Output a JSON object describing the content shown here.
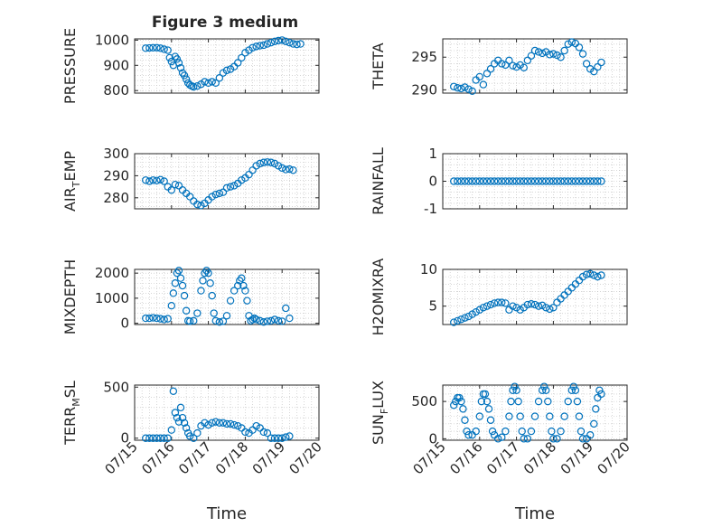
{
  "figure": {
    "title": "Figure 3 medium"
  },
  "chart_data": [
    {
      "type": "scatter",
      "title": "Figure 3 medium",
      "ylabel": "PRESSURE",
      "xlabel": "",
      "xlim": [
        "07/15",
        "07/20"
      ],
      "ylim": [
        790,
        1005
      ],
      "yticks": [
        800,
        900,
        1000
      ],
      "xticks": [
        "07/15",
        "07/16",
        "07/17",
        "07/18",
        "07/19",
        "07/20"
      ],
      "grid": "minor-dotted",
      "marker_color": "#0072BD",
      "x_days": [
        0.3,
        0.4,
        0.5,
        0.6,
        0.7,
        0.8,
        0.9,
        0.95,
        1.0,
        1.05,
        1.1,
        1.15,
        1.2,
        1.25,
        1.3,
        1.35,
        1.4,
        1.45,
        1.5,
        1.55,
        1.6,
        1.7,
        1.8,
        1.9,
        2.0,
        2.1,
        2.2,
        2.3,
        2.4,
        2.5,
        2.6,
        2.7,
        2.8,
        2.9,
        3.0,
        3.1,
        3.2,
        3.3,
        3.4,
        3.5,
        3.6,
        3.7,
        3.8,
        3.9,
        4.0,
        4.1,
        4.2,
        4.3,
        4.4,
        4.5
      ],
      "y": [
        968,
        969,
        970,
        970,
        968,
        964,
        960,
        930,
        915,
        900,
        935,
        925,
        910,
        890,
        870,
        860,
        845,
        830,
        822,
        818,
        815,
        818,
        825,
        835,
        830,
        835,
        830,
        850,
        870,
        880,
        885,
        895,
        910,
        930,
        950,
        960,
        970,
        975,
        978,
        980,
        985,
        990,
        995,
        998,
        1000,
        995,
        990,
        985,
        983,
        985
      ]
    },
    {
      "type": "scatter",
      "ylabel": "THETA",
      "xlabel": "",
      "xlim": [
        "07/15",
        "07/20"
      ],
      "ylim": [
        289.5,
        297.8
      ],
      "yticks": [
        290,
        295
      ],
      "xticks": [
        "07/15",
        "07/16",
        "07/17",
        "07/18",
        "07/19",
        "07/20"
      ],
      "grid": "minor-dotted",
      "marker_color": "#0072BD",
      "x_days": [
        0.3,
        0.4,
        0.5,
        0.6,
        0.7,
        0.8,
        0.9,
        1.0,
        1.1,
        1.2,
        1.3,
        1.4,
        1.5,
        1.6,
        1.7,
        1.8,
        1.9,
        2.0,
        2.1,
        2.2,
        2.3,
        2.4,
        2.5,
        2.6,
        2.7,
        2.8,
        2.9,
        3.0,
        3.1,
        3.2,
        3.3,
        3.4,
        3.5,
        3.6,
        3.7,
        3.8,
        3.9,
        4.0,
        4.1,
        4.2,
        4.3
      ],
      "y": [
        290.5,
        290.3,
        290.2,
        290.4,
        290.1,
        289.8,
        291.5,
        292.0,
        290.8,
        292.5,
        293.2,
        294.0,
        294.5,
        294.0,
        293.8,
        294.5,
        293.7,
        293.5,
        293.8,
        293.4,
        294.5,
        295.2,
        296.0,
        295.8,
        295.6,
        295.8,
        295.4,
        295.5,
        295.3,
        295.0,
        296.0,
        297.0,
        297.3,
        297.1,
        296.5,
        295.5,
        294.0,
        293.2,
        292.8,
        293.5,
        294.2
      ]
    },
    {
      "type": "scatter",
      "ylabel": "AIR_TEMP",
      "xlabel": "",
      "xlim": [
        "07/15",
        "07/20"
      ],
      "ylim": [
        275,
        300
      ],
      "yticks": [
        280,
        290,
        300
      ],
      "xticks": [
        "07/15",
        "07/16",
        "07/17",
        "07/18",
        "07/19",
        "07/20"
      ],
      "grid": "minor-dotted",
      "marker_color": "#0072BD",
      "x_days": [
        0.3,
        0.4,
        0.5,
        0.6,
        0.7,
        0.8,
        0.9,
        1.0,
        1.1,
        1.2,
        1.3,
        1.4,
        1.5,
        1.6,
        1.7,
        1.8,
        1.9,
        2.0,
        2.1,
        2.2,
        2.3,
        2.4,
        2.5,
        2.6,
        2.7,
        2.8,
        2.9,
        3.0,
        3.1,
        3.2,
        3.3,
        3.4,
        3.5,
        3.6,
        3.7,
        3.8,
        3.9,
        4.0,
        4.1,
        4.2,
        4.3
      ],
      "y": [
        288,
        287.5,
        288,
        287.8,
        288.2,
        287.5,
        285,
        283.5,
        286,
        285.5,
        283.5,
        282,
        280.5,
        278.5,
        277,
        276.5,
        277.5,
        279,
        280.5,
        281.5,
        282,
        282.5,
        284.5,
        285,
        285.5,
        286.5,
        288,
        289,
        290.5,
        292.5,
        294.5,
        295.5,
        296,
        296.2,
        296,
        295.5,
        294.5,
        293.5,
        292.8,
        293,
        292.5
      ]
    },
    {
      "type": "scatter",
      "ylabel": "RAINFALL",
      "xlabel": "",
      "xlim": [
        "07/15",
        "07/20"
      ],
      "ylim": [
        -1,
        1
      ],
      "yticks": [
        -1,
        0,
        1
      ],
      "xticks": [
        "07/15",
        "07/16",
        "07/17",
        "07/18",
        "07/19",
        "07/20"
      ],
      "grid": "minor-dotted",
      "marker_color": "#0072BD",
      "x_days": [
        0.3,
        0.4,
        0.5,
        0.6,
        0.7,
        0.8,
        0.9,
        1.0,
        1.1,
        1.2,
        1.3,
        1.4,
        1.5,
        1.6,
        1.7,
        1.8,
        1.9,
        2.0,
        2.1,
        2.2,
        2.3,
        2.4,
        2.5,
        2.6,
        2.7,
        2.8,
        2.9,
        3.0,
        3.1,
        3.2,
        3.3,
        3.4,
        3.5,
        3.6,
        3.7,
        3.8,
        3.9,
        4.0,
        4.1,
        4.2,
        4.3
      ],
      "y": [
        0,
        0,
        0,
        0,
        0,
        0,
        0,
        0,
        0,
        0,
        0,
        0,
        0,
        0,
        0,
        0,
        0,
        0,
        0,
        0,
        0,
        0,
        0,
        0,
        0,
        0,
        0,
        0,
        0,
        0,
        0,
        0,
        0,
        0,
        0,
        0,
        0,
        0,
        0,
        0,
        0
      ]
    },
    {
      "type": "scatter",
      "ylabel": "MIXDEPTH",
      "xlabel": "",
      "xlim": [
        "07/15",
        "07/20"
      ],
      "ylim": [
        -50,
        2150
      ],
      "yticks": [
        0,
        1000,
        2000
      ],
      "xticks": [
        "07/15",
        "07/16",
        "07/17",
        "07/18",
        "07/19",
        "07/20"
      ],
      "grid": "minor-dotted",
      "marker_color": "#0072BD",
      "x_days": [
        0.3,
        0.4,
        0.5,
        0.6,
        0.7,
        0.8,
        0.9,
        1.0,
        1.05,
        1.1,
        1.15,
        1.2,
        1.25,
        1.3,
        1.35,
        1.4,
        1.45,
        1.5,
        1.6,
        1.7,
        1.8,
        1.85,
        1.9,
        1.95,
        2.0,
        2.05,
        2.1,
        2.15,
        2.2,
        2.3,
        2.4,
        2.5,
        2.6,
        2.7,
        2.8,
        2.85,
        2.9,
        2.95,
        3.0,
        3.05,
        3.1,
        3.15,
        3.2,
        3.25,
        3.3,
        3.4,
        3.5,
        3.6,
        3.7,
        3.8,
        3.9,
        4.0,
        4.1,
        4.2
      ],
      "y": [
        200,
        200,
        220,
        200,
        180,
        150,
        180,
        700,
        1200,
        1600,
        2000,
        2100,
        1800,
        1500,
        1100,
        500,
        100,
        80,
        100,
        400,
        1300,
        1700,
        2000,
        2100,
        2000,
        1600,
        1100,
        400,
        100,
        50,
        80,
        300,
        900,
        1300,
        1500,
        1700,
        1800,
        1500,
        1300,
        900,
        300,
        100,
        150,
        200,
        150,
        100,
        50,
        80,
        100,
        150,
        100,
        80,
        600,
        200
      ]
    },
    {
      "type": "scatter",
      "ylabel": "H2OMIXRA",
      "xlabel": "",
      "xlim": [
        "07/15",
        "07/20"
      ],
      "ylim": [
        2.5,
        10
      ],
      "yticks": [
        5,
        10
      ],
      "xticks": [
        "07/15",
        "07/16",
        "07/17",
        "07/18",
        "07/19",
        "07/20"
      ],
      "grid": "minor-dotted",
      "marker_color": "#0072BD",
      "x_days": [
        0.3,
        0.4,
        0.5,
        0.6,
        0.7,
        0.8,
        0.9,
        1.0,
        1.1,
        1.2,
        1.3,
        1.4,
        1.5,
        1.6,
        1.7,
        1.8,
        1.9,
        2.0,
        2.1,
        2.2,
        2.3,
        2.4,
        2.5,
        2.6,
        2.7,
        2.8,
        2.9,
        3.0,
        3.1,
        3.2,
        3.3,
        3.4,
        3.5,
        3.6,
        3.7,
        3.8,
        3.9,
        4.0,
        4.1,
        4.2,
        4.3
      ],
      "y": [
        2.8,
        3.0,
        3.2,
        3.4,
        3.6,
        3.9,
        4.2,
        4.5,
        4.8,
        5.0,
        5.2,
        5.4,
        5.5,
        5.5,
        5.4,
        4.5,
        5.0,
        4.8,
        4.5,
        4.8,
        5.2,
        5.3,
        5.2,
        5.0,
        5.1,
        4.8,
        4.6,
        4.8,
        5.5,
        6.0,
        6.5,
        7.0,
        7.5,
        8.0,
        8.5,
        9.0,
        9.3,
        9.4,
        9.2,
        9.0,
        9.2
      ]
    },
    {
      "type": "scatter",
      "ylabel": "TERR_MSL",
      "xlabel": "Time",
      "xlim": [
        "07/15",
        "07/20"
      ],
      "ylim": [
        -20,
        520
      ],
      "yticks": [
        0,
        500
      ],
      "xticks": [
        "07/15",
        "07/16",
        "07/17",
        "07/18",
        "07/19",
        "07/20"
      ],
      "grid": "minor-dotted",
      "marker_color": "#0072BD",
      "x_days": [
        0.3,
        0.4,
        0.5,
        0.6,
        0.7,
        0.8,
        0.9,
        1.0,
        1.05,
        1.1,
        1.15,
        1.2,
        1.25,
        1.3,
        1.35,
        1.4,
        1.45,
        1.5,
        1.6,
        1.7,
        1.8,
        1.9,
        2.0,
        2.1,
        2.2,
        2.3,
        2.4,
        2.5,
        2.6,
        2.7,
        2.8,
        2.9,
        3.0,
        3.1,
        3.2,
        3.3,
        3.4,
        3.5,
        3.6,
        3.7,
        3.8,
        3.9,
        4.0,
        4.1,
        4.2
      ],
      "y": [
        0,
        0,
        0,
        0,
        0,
        0,
        0,
        80,
        460,
        250,
        200,
        160,
        300,
        200,
        150,
        100,
        50,
        20,
        0,
        50,
        120,
        150,
        130,
        150,
        160,
        150,
        150,
        140,
        140,
        130,
        120,
        100,
        60,
        50,
        80,
        120,
        100,
        60,
        50,
        0,
        0,
        0,
        0,
        10,
        20
      ]
    },
    {
      "type": "scatter",
      "ylabel": "SUN_FLUX",
      "xlabel": "Time",
      "xlim": [
        "07/15",
        "07/20"
      ],
      "ylim": [
        -20,
        720
      ],
      "yticks": [
        0,
        500
      ],
      "xticks": [
        "07/15",
        "07/16",
        "07/17",
        "07/18",
        "07/19",
        "07/20"
      ],
      "grid": "minor-dotted",
      "marker_color": "#0072BD",
      "x_days": [
        0.3,
        0.35,
        0.4,
        0.45,
        0.5,
        0.55,
        0.6,
        0.65,
        0.7,
        0.8,
        0.9,
        1.0,
        1.05,
        1.1,
        1.15,
        1.2,
        1.25,
        1.3,
        1.35,
        1.4,
        1.5,
        1.6,
        1.7,
        1.8,
        1.85,
        1.9,
        1.95,
        2.0,
        2.05,
        2.1,
        2.15,
        2.2,
        2.3,
        2.4,
        2.5,
        2.6,
        2.7,
        2.75,
        2.8,
        2.85,
        2.9,
        2.95,
        3.0,
        3.1,
        3.2,
        3.3,
        3.4,
        3.5,
        3.55,
        3.6,
        3.65,
        3.7,
        3.75,
        3.8,
        3.9,
        4.0,
        4.1,
        4.15,
        4.2,
        4.25,
        4.3
      ],
      "y": [
        450,
        500,
        550,
        550,
        500,
        400,
        250,
        100,
        50,
        50,
        100,
        300,
        500,
        600,
        600,
        500,
        400,
        250,
        100,
        50,
        0,
        20,
        100,
        300,
        500,
        650,
        700,
        650,
        500,
        300,
        100,
        0,
        0,
        100,
        300,
        500,
        650,
        700,
        650,
        500,
        300,
        100,
        0,
        0,
        100,
        300,
        500,
        650,
        700,
        650,
        500,
        300,
        100,
        0,
        0,
        50,
        200,
        400,
        550,
        650,
        600
      ]
    }
  ]
}
